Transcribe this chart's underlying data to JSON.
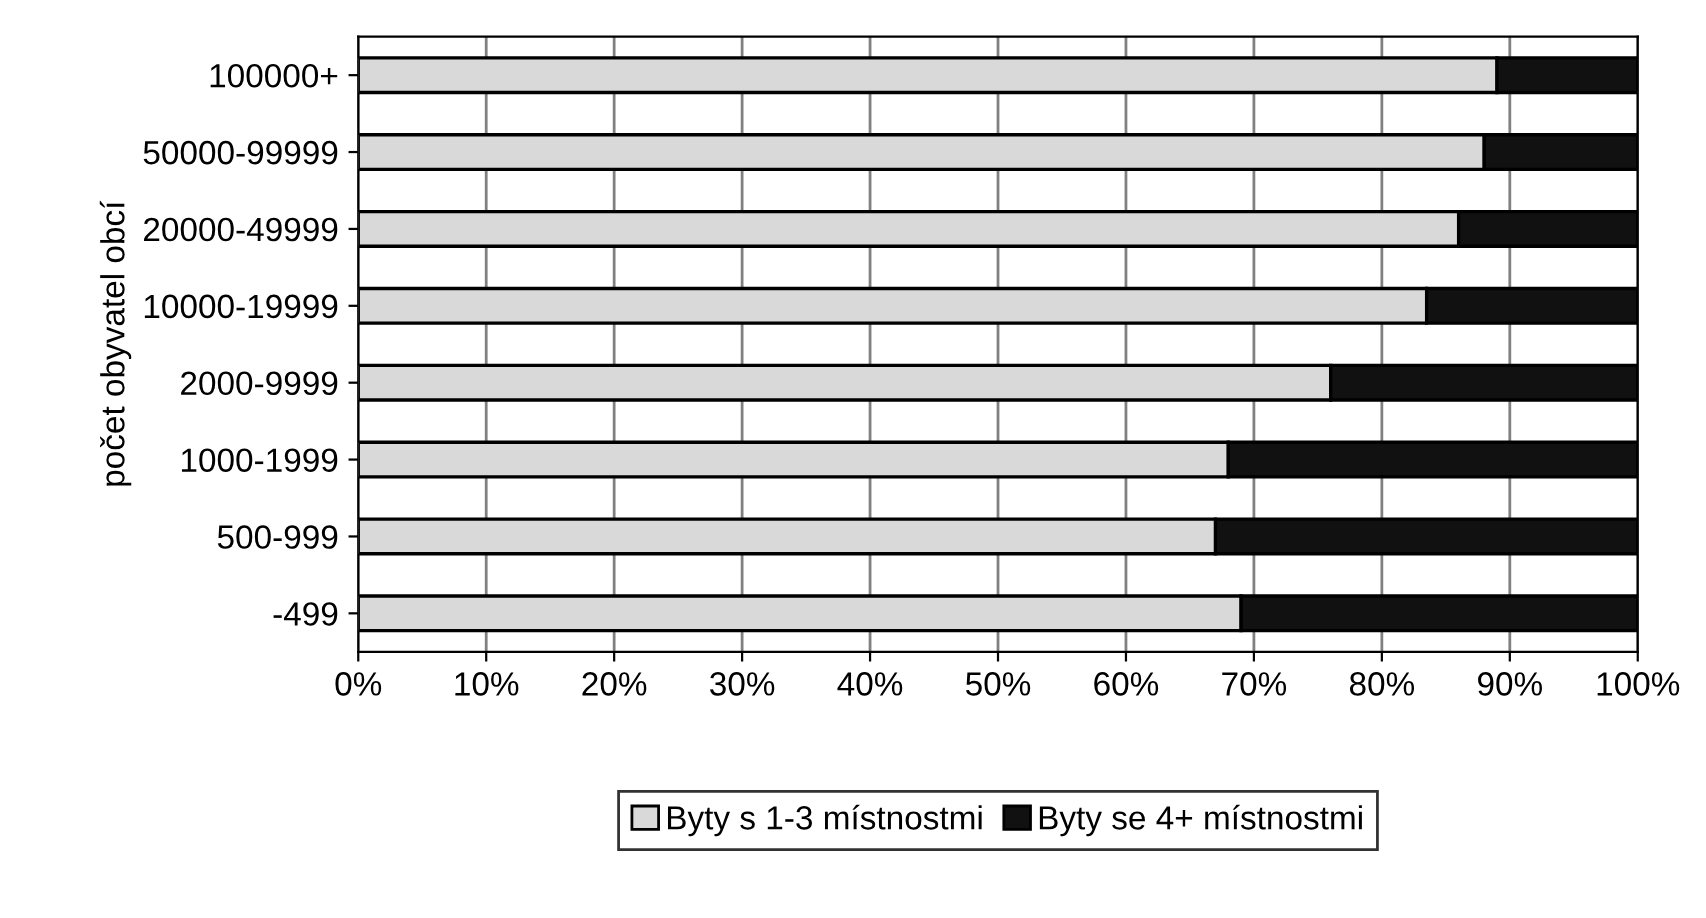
{
  "chart_data": {
    "type": "bar",
    "orientation": "horizontal",
    "stacked": true,
    "ylabel": "počet obyvatel obcí",
    "categories": [
      "100000+",
      "50000-99999",
      "20000-49999",
      "10000-19999",
      "2000-9999",
      "1000-1999",
      "500-999",
      "-499"
    ],
    "series": [
      {
        "name": "Byty s 1-3 místnostmi",
        "color": "#d9d9d9",
        "values": [
          89,
          88,
          86,
          83.5,
          76,
          68,
          67,
          69
        ]
      },
      {
        "name": "Byty se 4+ místnostmi",
        "color": "#111111",
        "values": [
          11,
          12,
          14,
          16.5,
          24,
          32,
          33,
          31
        ]
      }
    ],
    "xlim": [
      0,
      100
    ],
    "xticks": [
      {
        "value": 0,
        "label": "0%"
      },
      {
        "value": 10,
        "label": "10%"
      },
      {
        "value": 20,
        "label": "20%"
      },
      {
        "value": 30,
        "label": "30%"
      },
      {
        "value": 40,
        "label": "40%"
      },
      {
        "value": 50,
        "label": "50%"
      },
      {
        "value": 60,
        "label": "60%"
      },
      {
        "value": 70,
        "label": "70%"
      },
      {
        "value": 80,
        "label": "80%"
      },
      {
        "value": 90,
        "label": "90%"
      },
      {
        "value": 100,
        "label": "100%"
      }
    ],
    "grid": "x",
    "legend": "bottom"
  }
}
